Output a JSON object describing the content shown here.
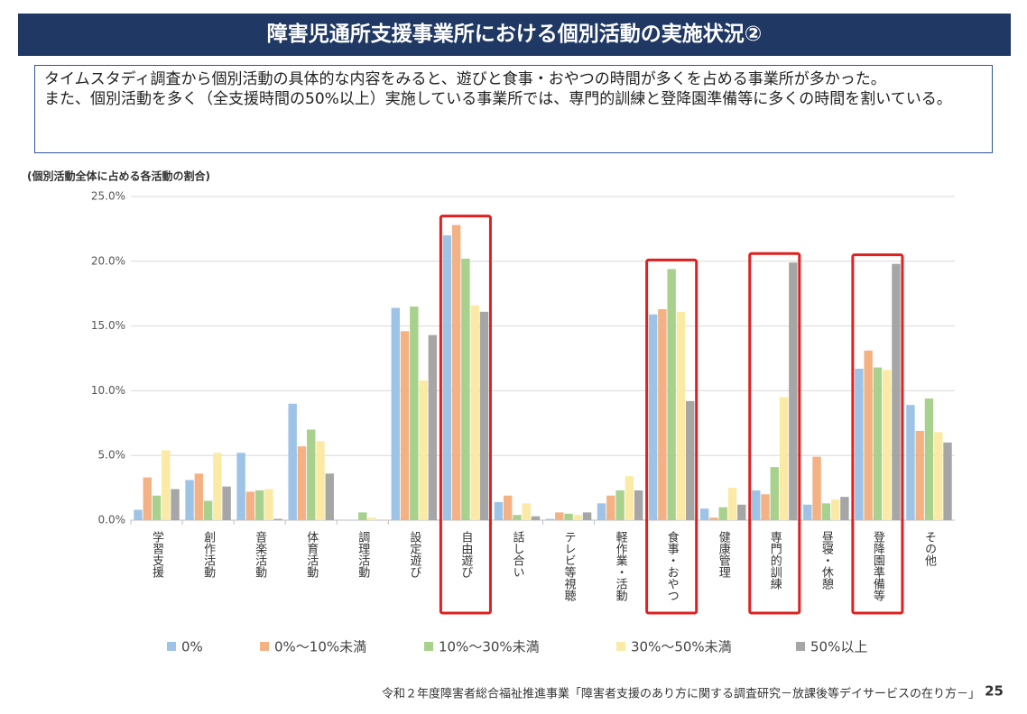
{
  "header": {
    "title": "障害児通所支援事業所における個別活動の実施状況②"
  },
  "summary": [
    "タイムスタディ調査から個別活動の具体的な内容をみると、遊びと食事・おやつの時間が多くを占める事業所が多かった。",
    "また、個別活動を多く（全支援時間の50%以上）実施している事業所では、専門的訓練と登降園準備等に多くの時間を割いている。"
  ],
  "chart_data": {
    "type": "bar",
    "y_label": "(個別活動全体に占める各活動の割合)",
    "categories": [
      "学習支援",
      "創作活動",
      "音楽活動",
      "体育活動",
      "調理活動",
      "設定遊び",
      "自由遊び",
      "話し合い",
      "テレビ等視聴",
      "軽作業・活動",
      "食事・おやつ",
      "健康管理",
      "専門的訓練",
      "昼寝・休憩",
      "登降園準備等",
      "その他"
    ],
    "series": [
      {
        "name": "0%",
        "color": "#9dc3e6",
        "values": [
          0.8,
          3.1,
          5.2,
          9.0,
          0,
          16.4,
          22.0,
          1.4,
          0.1,
          1.3,
          15.9,
          0.9,
          2.3,
          1.2,
          11.7,
          8.9
        ]
      },
      {
        "name": "0%～10%未満",
        "color": "#f4b183",
        "values": [
          3.3,
          3.6,
          2.2,
          5.7,
          0,
          14.6,
          22.8,
          1.9,
          0.6,
          1.9,
          16.3,
          0.2,
          2.0,
          4.9,
          13.1,
          6.9
        ]
      },
      {
        "name": "10%～30%未満",
        "color": "#a9d18e",
        "values": [
          1.9,
          1.5,
          2.3,
          7.0,
          0.6,
          16.5,
          20.2,
          0.4,
          0.5,
          2.3,
          19.4,
          1.0,
          4.1,
          1.3,
          11.8,
          9.4
        ]
      },
      {
        "name": "30%～50%未満",
        "color": "#fbeaa6",
        "values": [
          5.4,
          5.2,
          2.4,
          6.1,
          0.2,
          10.8,
          16.6,
          1.3,
          0.4,
          3.4,
          16.1,
          2.5,
          9.5,
          1.6,
          11.6,
          6.8
        ]
      },
      {
        "name": "50%以上",
        "color": "#a6a6a6",
        "values": [
          2.4,
          2.6,
          0.1,
          3.6,
          0,
          14.3,
          16.1,
          0.3,
          0.6,
          2.3,
          9.2,
          1.2,
          19.9,
          1.8,
          19.8,
          6.0
        ]
      }
    ],
    "ylim": [
      0,
      25
    ],
    "yticks": [
      {
        "value": 0,
        "label": "0.0%"
      },
      {
        "value": 5,
        "label": "5.0%"
      },
      {
        "value": 10,
        "label": "10.0%"
      },
      {
        "value": 15,
        "label": "15.0%"
      },
      {
        "value": 20,
        "label": "20.0%"
      },
      {
        "value": 25,
        "label": "25.0%"
      }
    ],
    "grid": true,
    "highlight": [
      6,
      10,
      12,
      14
    ],
    "highlight_color": "#e02020",
    "legend": "bottom"
  },
  "footer": "令和２年度障害者総合福祉推進事業「障害者支援のあり方に関する調査研究－放課後等デイサービスの在り方－」",
  "page_number": "25"
}
